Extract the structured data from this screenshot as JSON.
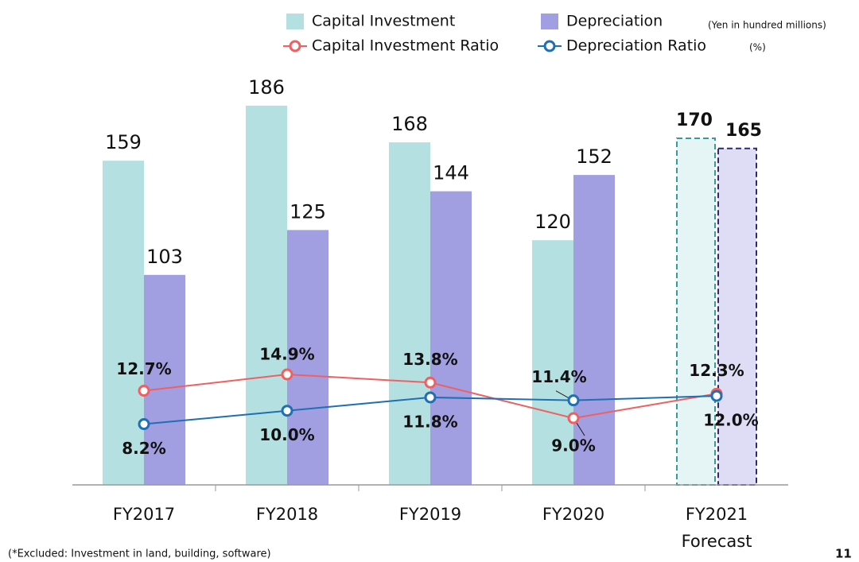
{
  "chart_data": {
    "type": "bar-line",
    "categories": [
      "FY2017",
      "FY2018",
      "FY2019",
      "FY2020",
      "FY2021"
    ],
    "forecast_category": 4,
    "forecast_label": "Forecast",
    "series": [
      {
        "name": "Capital Investment",
        "type": "bar",
        "color": "#b5e0e1",
        "values": [
          159,
          186,
          168,
          120,
          170
        ]
      },
      {
        "name": "Depreciation",
        "type": "bar",
        "color": "#a19fe2",
        "values": [
          103,
          125,
          144,
          152,
          165
        ]
      },
      {
        "name": "Capital Investment Ratio",
        "type": "line",
        "axis": "y2",
        "color": "#f06060",
        "values": [
          12.7,
          14.9,
          13.8,
          9.0,
          12.3
        ],
        "value_labels": [
          "12.7%",
          "14.9%",
          "13.8%",
          "9.0%",
          "12.3%"
        ]
      },
      {
        "name": "Depreciation Ratio",
        "type": "line",
        "axis": "y2",
        "color": "#1f6fb3",
        "values": [
          8.2,
          10.0,
          11.8,
          11.4,
          12.0
        ],
        "value_labels": [
          "8.2%",
          "10.0%",
          "11.8%",
          "11.4%",
          "12.0%"
        ]
      }
    ],
    "ylim": [
      0,
      200
    ],
    "y2lim": [
      0,
      55
    ],
    "unit_note": "(Yen in hundred millions)",
    "ratio_note": "(%)",
    "footnote": "(*Excluded: Investment in land, building, software)",
    "page_number": "11"
  }
}
